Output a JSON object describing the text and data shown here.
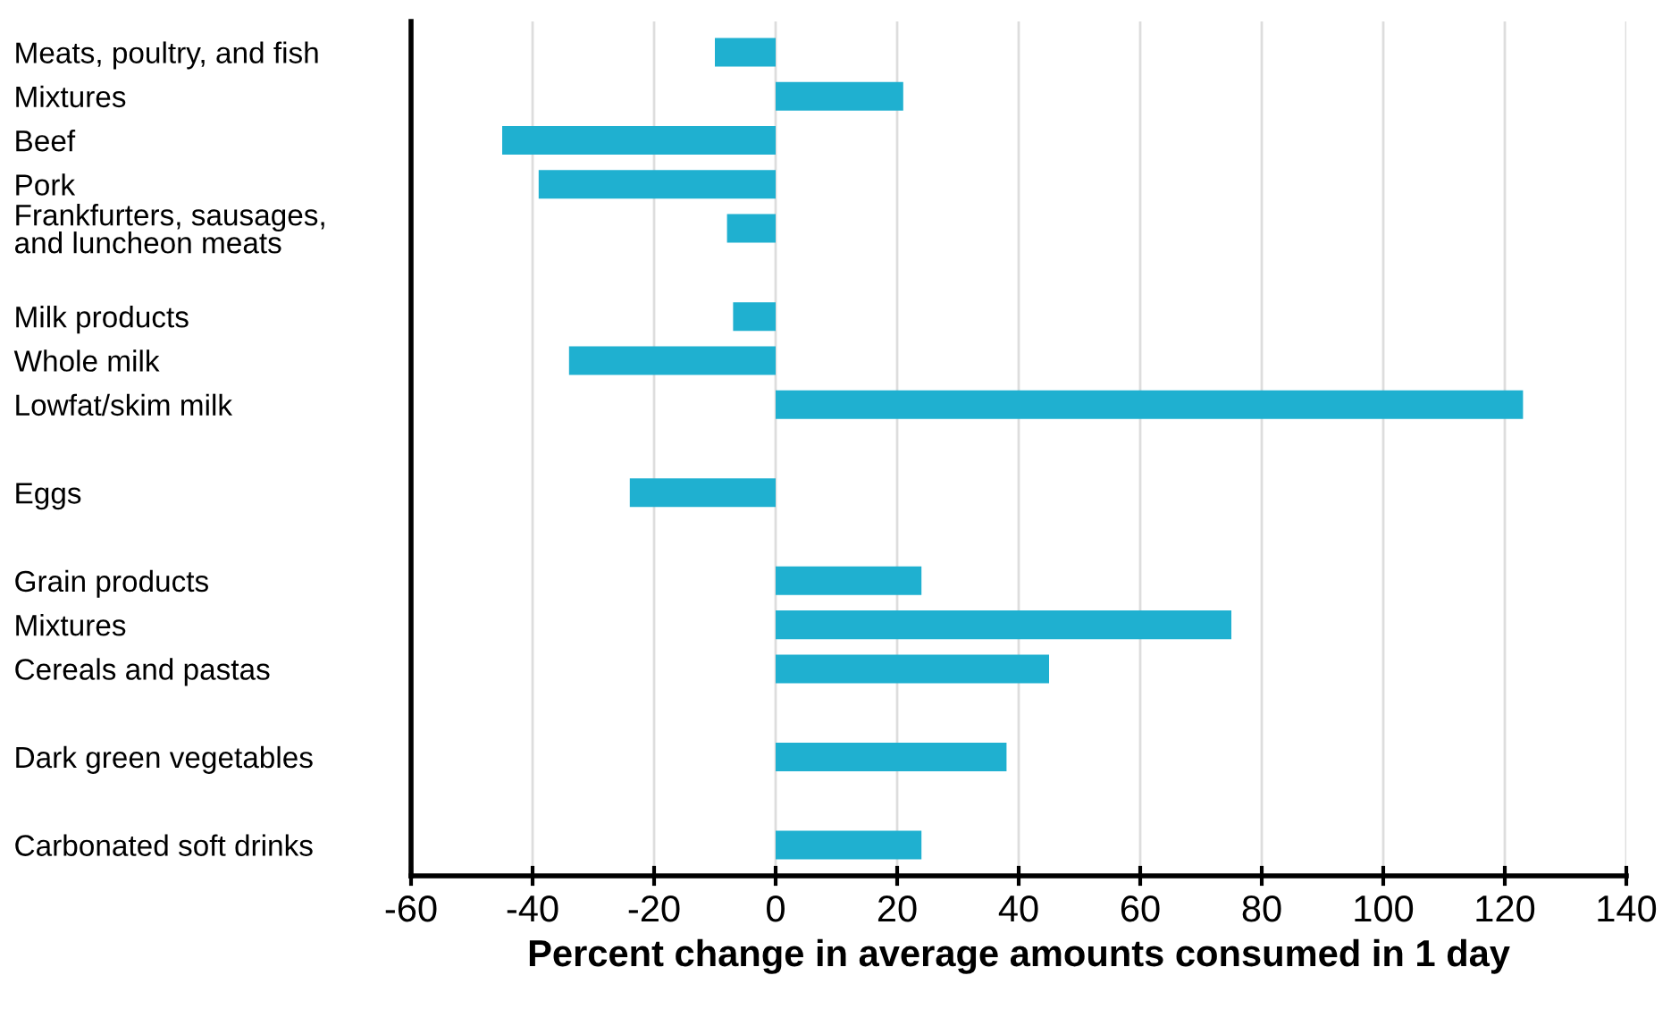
{
  "chart_data": {
    "type": "bar",
    "orientation": "horizontal",
    "xlabel": "Percent change in average amounts consumed in 1 day",
    "categories": [
      "Meats, poultry, and fish",
      "Mixtures",
      "Beef",
      "Pork",
      "Frankfurters, sausages,\nand luncheon meats",
      null,
      "Milk products",
      "Whole milk",
      "Lowfat/skim milk",
      null,
      "Eggs",
      null,
      "Grain products",
      "Mixtures",
      "Cereals and pastas",
      null,
      "Dark green vegetables",
      null,
      "Carbonated soft drinks"
    ],
    "values": [
      -10,
      21,
      -45,
      -39,
      -8,
      null,
      -7,
      -34,
      123,
      null,
      -24,
      null,
      24,
      75,
      45,
      null,
      38,
      null,
      24
    ],
    "color": "#1fb0d0",
    "xlim": [
      -60,
      140
    ],
    "xticks": [
      -60,
      -40,
      -20,
      0,
      20,
      40,
      60,
      80,
      100,
      120,
      140
    ],
    "grid": "x",
    "legend": false
  }
}
